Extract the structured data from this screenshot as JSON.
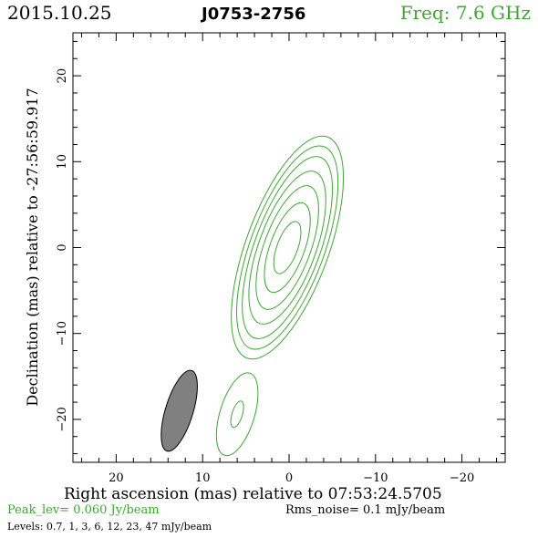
{
  "header": {
    "date": "2015.10.25",
    "source": "J0753-2756",
    "freq": "Freq: 7.6 GHz"
  },
  "footer": {
    "xlabel": "Right ascension (mas) relative to 07:53:24.5705",
    "peak": "Peak_lev=  0.060 Jy/beam",
    "rms": "Rms_noise=  0.1 mJy/beam",
    "levels": "Levels: 0.7,   1,   3,   6,   12,   23,   47 mJy/beam"
  },
  "colors": {
    "contour": "#3fa535",
    "beam_fill": "#808080",
    "axes": "#000000",
    "header_accent": "#3fa535"
  },
  "chart_data": {
    "type": "contour",
    "title": "J0753-2756",
    "xlabel": "Right ascension (mas) relative to 07:53:24.5705",
    "ylabel": "Declination (mas) relative to -27:56:59.917",
    "xlim": [
      25,
      -25
    ],
    "ylim": [
      -25,
      25
    ],
    "xticks": [
      20,
      10,
      0,
      -10,
      -20
    ],
    "yticks": [
      20,
      10,
      0,
      -10,
      -20
    ],
    "xtick_labels": [
      "20",
      "10",
      "0",
      "−10",
      "−20"
    ],
    "ytick_labels": [
      "20",
      "10",
      "0",
      "−10",
      "−20"
    ],
    "contour_levels_mJy": [
      0.7,
      1,
      3,
      6,
      12,
      23,
      47
    ],
    "peak_Jy_per_beam": 0.06,
    "rms_mJy_per_beam": 0.1,
    "core_component": {
      "center": [
        0.2,
        0
      ],
      "pa_deg": 160,
      "contours_semi_axes": [
        [
          1.2,
          3.2
        ],
        [
          2.0,
          5.5
        ],
        [
          2.7,
          7.6
        ],
        [
          3.3,
          9.4
        ],
        [
          3.8,
          11.2
        ],
        [
          4.3,
          12.5
        ],
        [
          4.8,
          13.7
        ]
      ]
    },
    "secondary_component": {
      "center": [
        6.0,
        -19.4
      ],
      "pa_deg": 163,
      "contours_semi_axes": [
        [
          0.6,
          1.6
        ],
        [
          2.0,
          5.0
        ]
      ]
    },
    "beam": {
      "center": [
        12.7,
        -19.0
      ],
      "semi_axes": [
        1.6,
        4.9
      ],
      "pa_deg": 163
    }
  }
}
